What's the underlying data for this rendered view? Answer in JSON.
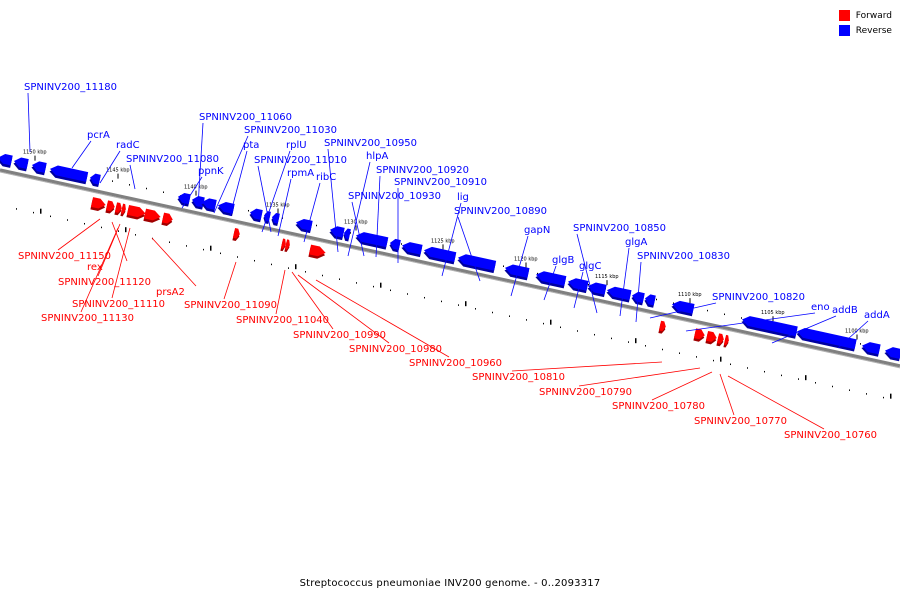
{
  "legend": [
    {
      "label": "Forward",
      "color": "#ff0000"
    },
    {
      "label": "Reverse",
      "color": "#0000ff"
    }
  ],
  "caption": "Streptococcus pneumoniae INV200 genome. - 0..2093317",
  "colors": {
    "forward": "#ff0000",
    "reverse": "#0000ff",
    "backbone": "#808080"
  },
  "scale": {
    "unit": "kbp",
    "labels": [
      "1150 kbp",
      "1145 kbp",
      "1140 kbp",
      "1135 kbp",
      "1130 kbp",
      "1125 kbp",
      "1120 kbp",
      "1115 kbp",
      "1110 kbp",
      "1105 kbp",
      "1100 kbp"
    ]
  },
  "genes": {
    "reverse": [
      "SPNINV200_11180",
      "pcrA",
      "radC",
      "SPNINV200_11080",
      "ppnK",
      "SPNINV200_11060",
      "SPNINV200_11030",
      "pta",
      "rplU",
      "SPNINV200_11010",
      "rpmA",
      "ribC",
      "SPNINV200_10950",
      "hlpA",
      "SPNINV200_10920",
      "SPNINV200_10910",
      "SPNINV200_10930",
      "lig",
      "SPNINV200_10890",
      "gapN",
      "glgB",
      "glgC",
      "SPNINV200_10850",
      "glgA",
      "SPNINV200_10830",
      "SPNINV200_10820",
      "eno",
      "addB",
      "addA"
    ],
    "forward": [
      "SPNINV200_11150",
      "rex",
      "SPNINV200_11120",
      "SPNINV200_11110",
      "SPNINV200_11130",
      "prsA2",
      "SPNINV200_11090",
      "SPNINV200_11040",
      "SPNINV200_10990",
      "SPNINV200_10980",
      "SPNINV200_10960",
      "SPNINV200_10810",
      "SPNINV200_10790",
      "SPNINV200_10780",
      "SPNINV200_10770",
      "SPNINV200_10760"
    ]
  }
}
